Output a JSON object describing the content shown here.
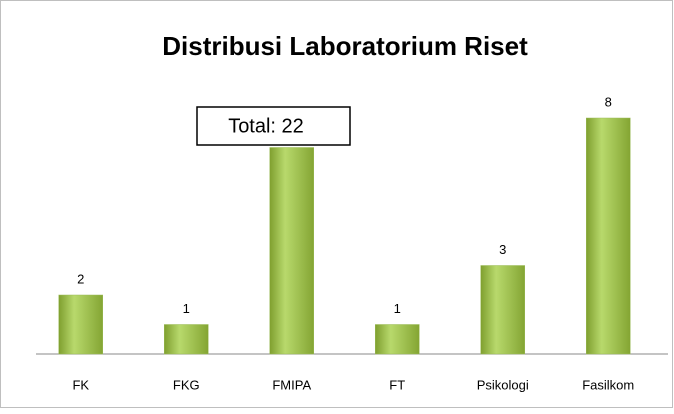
{
  "chart_data": {
    "type": "bar",
    "title": "Distribusi Laboratorium Riset",
    "annotation": "Total: 22",
    "categories": [
      "FK",
      "FKG",
      "FMIPA",
      "FT",
      "Psikologi",
      "Fasilkom"
    ],
    "values": [
      2,
      1,
      7,
      1,
      3,
      8
    ],
    "color": "#9bbb59",
    "ylim": [
      0,
      9
    ]
  }
}
